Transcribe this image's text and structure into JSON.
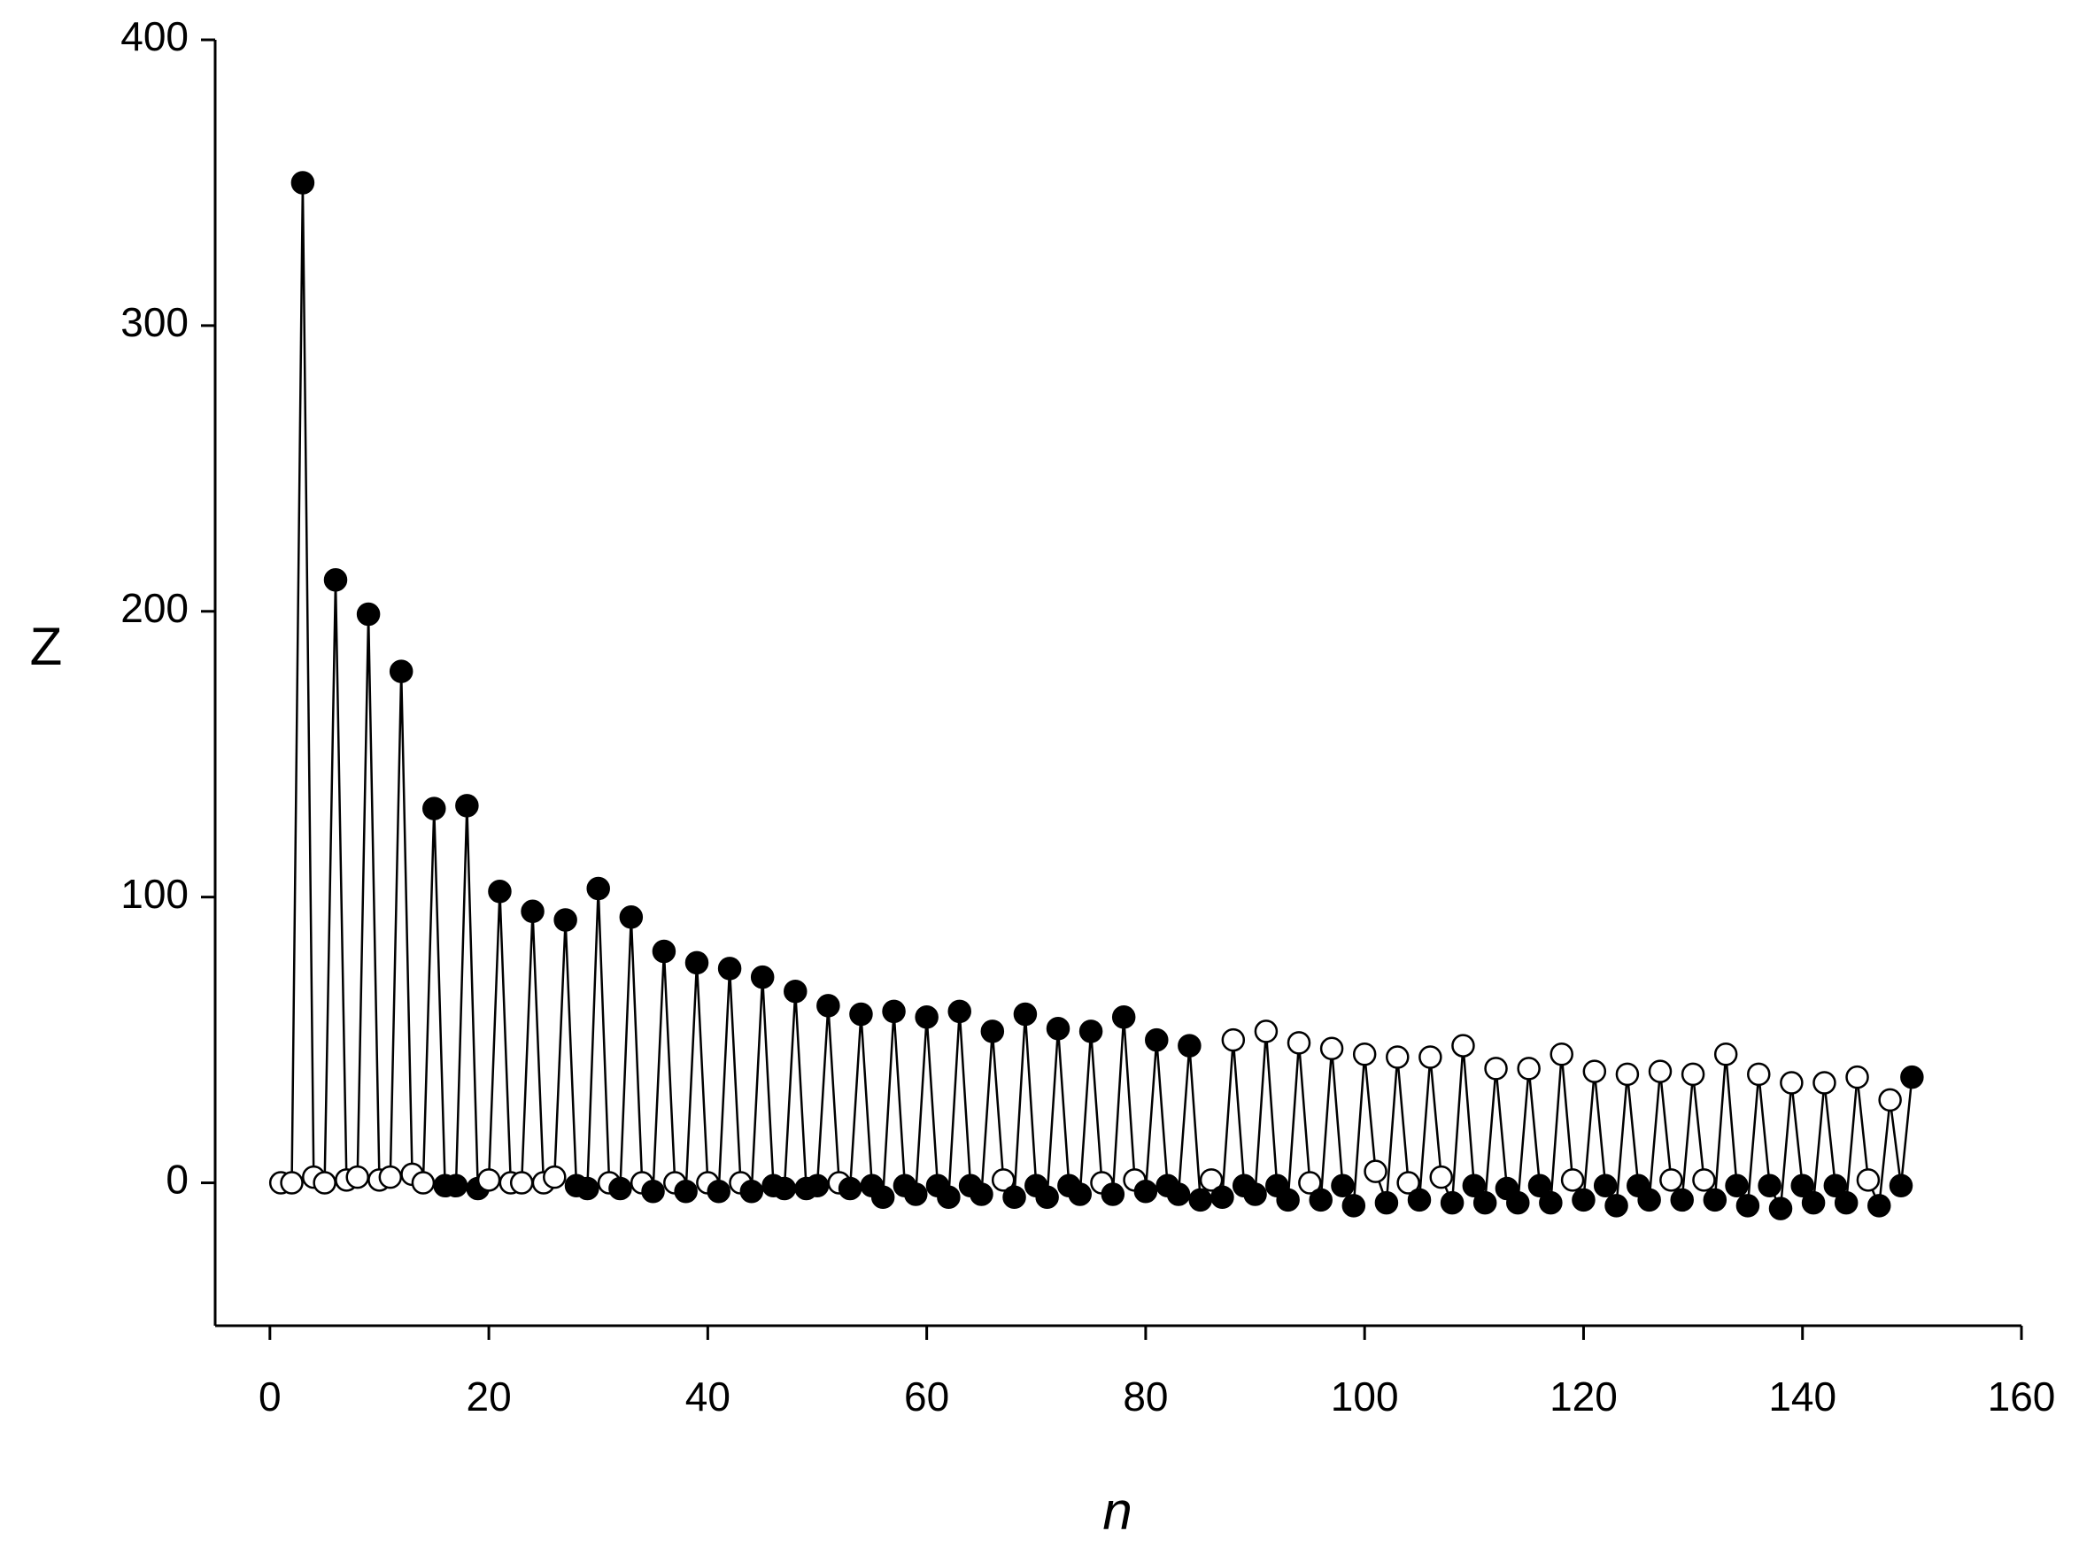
{
  "chart_data": {
    "type": "line",
    "xlabel": "n",
    "ylabel": "Z",
    "x": [
      1,
      2,
      3,
      4,
      5,
      6,
      7,
      8,
      9,
      10,
      11,
      12,
      13,
      14,
      15,
      16,
      17,
      18,
      19,
      20,
      21,
      22,
      23,
      24,
      25,
      26,
      27,
      28,
      29,
      30,
      31,
      32,
      33,
      34,
      35,
      36,
      37,
      38,
      39,
      40,
      41,
      42,
      43,
      44,
      45,
      46,
      47,
      48,
      49,
      50,
      51,
      52,
      53,
      54,
      55,
      56,
      57,
      58,
      59,
      60,
      61,
      62,
      63,
      64,
      65,
      66,
      67,
      68,
      69,
      70,
      71,
      72,
      73,
      74,
      75,
      76,
      77,
      78,
      79,
      80,
      81,
      82,
      83,
      84,
      85,
      86,
      87,
      88,
      89,
      90,
      91,
      92,
      93,
      94,
      95,
      96,
      97,
      98,
      99,
      100,
      101,
      102,
      103,
      104,
      105,
      106,
      107,
      108,
      109,
      110,
      111,
      112,
      113,
      114,
      115,
      116,
      117,
      118,
      119,
      120,
      121,
      122,
      123,
      124,
      125,
      126,
      127,
      128,
      129,
      130,
      131,
      132,
      133,
      134,
      135,
      136,
      137,
      138,
      139,
      140,
      141,
      142,
      143,
      144,
      145,
      146,
      147,
      148,
      149,
      150
    ],
    "series": [
      {
        "color": "#000000",
        "values": [
          0,
          0,
          350,
          2,
          0,
          211,
          1,
          2,
          199,
          1,
          2,
          179,
          3,
          0,
          131,
          -1,
          -1,
          132,
          -2,
          1,
          102,
          0,
          0,
          95,
          0,
          2,
          92,
          -1,
          -2,
          103,
          0,
          -2,
          93,
          0,
          -3,
          81,
          0,
          -3,
          77,
          0,
          -3,
          75,
          0,
          -3,
          72,
          -1,
          -2,
          67,
          -2,
          -1,
          62,
          0,
          -2,
          59,
          -1,
          -5,
          60,
          -1,
          -4,
          58,
          -1,
          -5,
          60,
          -1,
          -4,
          53,
          1,
          -5,
          59,
          -1,
          -5,
          54,
          -1,
          -4,
          53,
          0,
          -4,
          58,
          1,
          -3,
          50,
          -1,
          -4,
          48,
          -6,
          1,
          -5,
          50,
          -1,
          -4,
          53,
          -1,
          -6,
          49,
          0,
          -6,
          47,
          -1,
          -8,
          45,
          4,
          -7,
          44,
          0,
          -6,
          44,
          2,
          -7,
          48,
          -1,
          -7,
          40,
          -2,
          -7,
          40,
          -1,
          -7,
          45,
          1,
          -6,
          39,
          -1,
          -8,
          38,
          -1,
          -6,
          39,
          1,
          -6,
          38,
          1,
          -6,
          45,
          -1,
          -8,
          38,
          -1,
          -9,
          35,
          -1,
          -7,
          35,
          -1,
          -7,
          37,
          1,
          -8,
          29,
          -1,
          37
        ]
      }
    ],
    "xlim": [
      -5,
      160
    ],
    "ylim": [
      -50,
      400
    ],
    "xticks": [
      0,
      20,
      40,
      60,
      80,
      100,
      120,
      140,
      160
    ],
    "yticks": [
      0,
      100,
      200,
      300,
      400
    ]
  }
}
